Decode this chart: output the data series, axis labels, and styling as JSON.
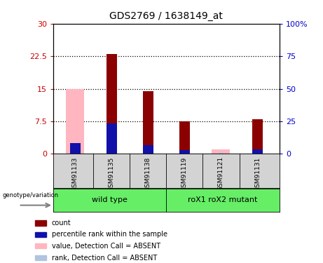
{
  "title": "GDS2769 / 1638149_at",
  "samples": [
    "GSM91133",
    "GSM91135",
    "GSM91138",
    "GSM91119",
    "GSM91121",
    "GSM91131"
  ],
  "count_values": [
    0,
    23.0,
    14.5,
    7.5,
    0,
    8.0
  ],
  "rank_values": [
    2.5,
    7.0,
    2.0,
    0.8,
    0,
    1.0
  ],
  "absent_value_values": [
    15.0,
    0,
    0,
    0,
    1.0,
    0
  ],
  "absent_rank_values": [
    2.5,
    0,
    0,
    0,
    0.2,
    0
  ],
  "ylim_left": [
    0,
    30
  ],
  "ylim_right": [
    0,
    100
  ],
  "yticks_left": [
    0,
    7.5,
    15,
    22.5,
    30
  ],
  "yticks_right": [
    0,
    25,
    50,
    75,
    100
  ],
  "ytick_labels_left": [
    "0",
    "7.5",
    "15",
    "22.5",
    "30"
  ],
  "ytick_labels_right": [
    "0",
    "25",
    "50",
    "75",
    "100%"
  ],
  "dotted_lines": [
    7.5,
    15,
    22.5
  ],
  "bar_color_count": "#8B0000",
  "bar_color_rank": "#1111AA",
  "bar_color_absent_value": "#FFB6C1",
  "bar_color_absent_rank": "#B0C4DE",
  "bg_color": "#d3d3d3",
  "group_bg_color": "#66ee66",
  "plot_bg": "#ffffff",
  "left_tick_color": "#cc0000",
  "right_tick_color": "#0000cc",
  "wild_type_label": "wild type",
  "mutant_label": "roX1 roX2 mutant",
  "geno_label": "genotype/variation",
  "legend_items": [
    {
      "label": "count",
      "color": "#8B0000"
    },
    {
      "label": "percentile rank within the sample",
      "color": "#1111AA"
    },
    {
      "label": "value, Detection Call = ABSENT",
      "color": "#FFB6C1"
    },
    {
      "label": "rank, Detection Call = ABSENT",
      "color": "#B0C4DE"
    }
  ]
}
